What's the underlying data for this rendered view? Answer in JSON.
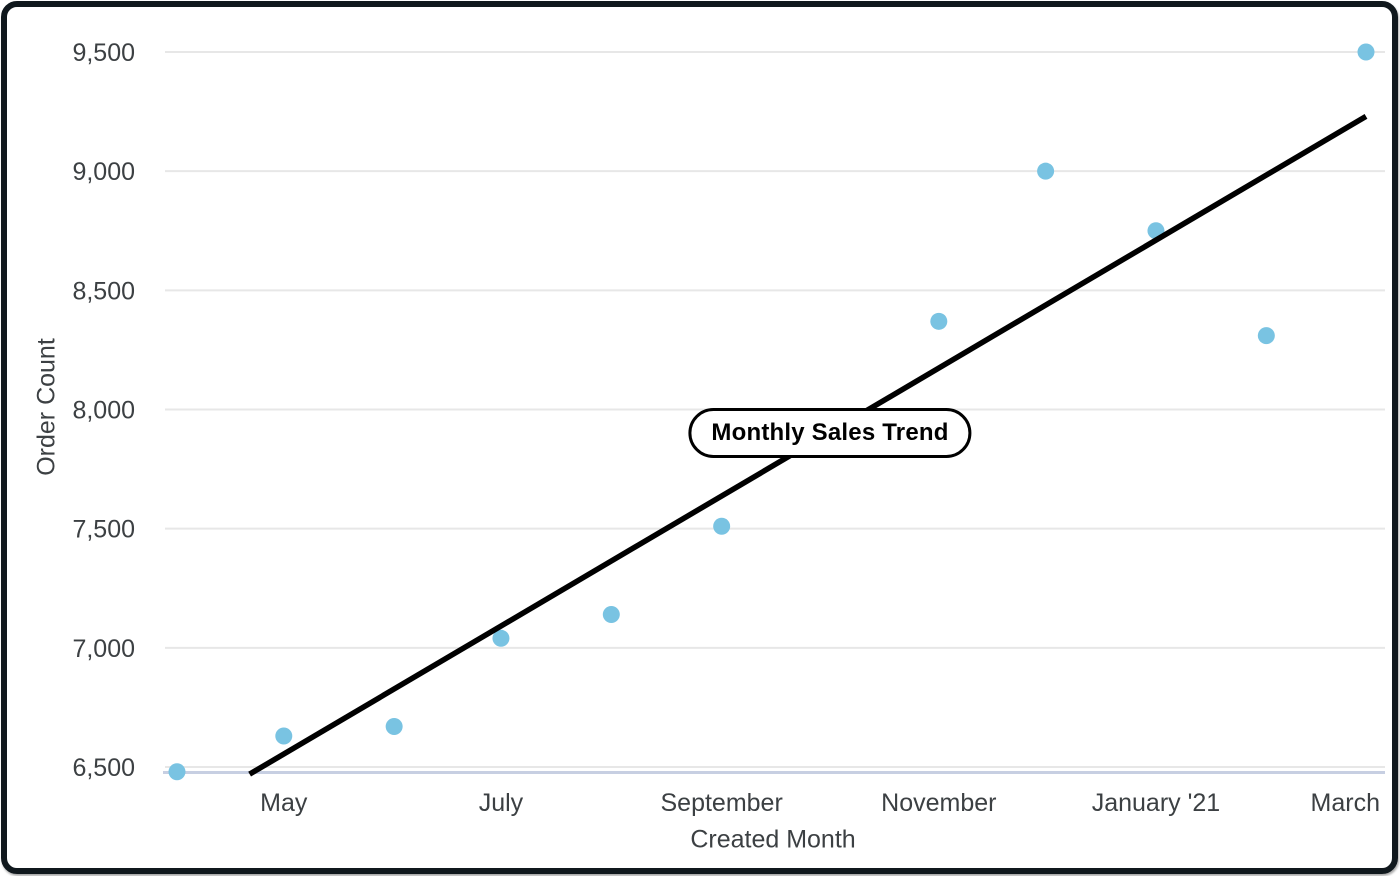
{
  "chart_data": {
    "type": "scatter",
    "title": "Monthly Sales Trend",
    "xlabel": "Created Month",
    "ylabel": "Order Count",
    "grid": true,
    "legend": "none",
    "ylim": [
      6500,
      9500
    ],
    "y_ticks": [
      {
        "value": 6500,
        "label": "6,500"
      },
      {
        "value": 7000,
        "label": "7,000"
      },
      {
        "value": 7500,
        "label": "7,500"
      },
      {
        "value": 8000,
        "label": "8,000"
      },
      {
        "value": 8500,
        "label": "8,500"
      },
      {
        "value": 9000,
        "label": "9,000"
      },
      {
        "value": 9500,
        "label": "9,500"
      }
    ],
    "x_tick_labels": [
      {
        "label": "May",
        "month_index": 1
      },
      {
        "label": "July",
        "month_index": 3
      },
      {
        "label": "September",
        "month_index": 5
      },
      {
        "label": "November",
        "month_index": 7
      },
      {
        "label": "January '21",
        "month_index": 9
      },
      {
        "label": "March",
        "month_index": 11
      }
    ],
    "points": [
      {
        "month": "April '20",
        "month_index": 0,
        "value": 6480
      },
      {
        "month": "May",
        "month_index": 1,
        "value": 6630
      },
      {
        "month": "June",
        "month_index": 2,
        "value": 6670
      },
      {
        "month": "July",
        "month_index": 3,
        "value": 7040
      },
      {
        "month": "August",
        "month_index": 4,
        "value": 7140
      },
      {
        "month": "September",
        "month_index": 5,
        "value": 7510
      },
      {
        "month": "November",
        "month_index": 7,
        "value": 8370
      },
      {
        "month": "December",
        "month_index": 8,
        "value": 9000
      },
      {
        "month": "January '21",
        "month_index": 9,
        "value": 8750
      },
      {
        "month": "February",
        "month_index": 10,
        "value": 8310
      },
      {
        "month": "March",
        "month_index": 11,
        "value": 9500
      }
    ],
    "trend_line": {
      "start": {
        "month_index": 0.68,
        "value": 6470
      },
      "end": {
        "month_index": 11.0,
        "value": 9230
      }
    },
    "colors": {
      "point": "#79C3E2",
      "trend": "#000000",
      "grid": "#E7E7E7",
      "axis_line": "#C7CFE2",
      "tick_text": "#3C4043",
      "frame": "#10181D",
      "pill_border": "#000000",
      "pill_bg": "#FFFFFF"
    }
  }
}
